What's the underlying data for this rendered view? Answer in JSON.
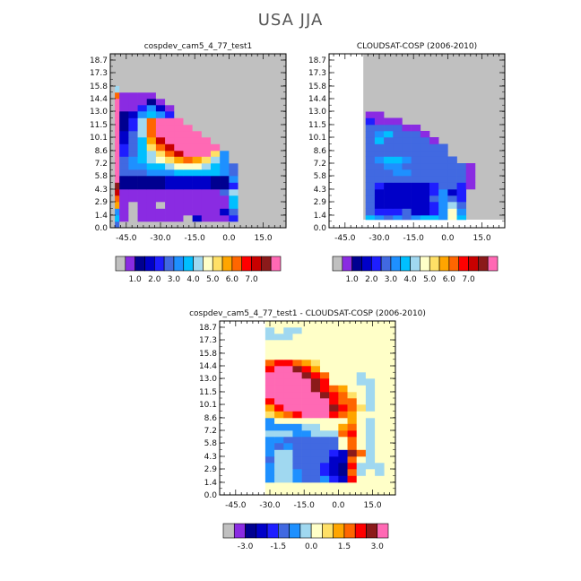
{
  "page_title": "USA JJA",
  "palettes": {
    "abs": [
      "#c0c0c0",
      "#8a2be2",
      "#000090",
      "#0000c8",
      "#1e1eff",
      "#4169e1",
      "#1e90ff",
      "#00bfff",
      "#a0d8f0",
      "#ffffc8",
      "#ffe066",
      "#ffa500",
      "#ff6600",
      "#ff0000",
      "#c80000",
      "#8b1a1a",
      "#ff69b4"
    ],
    "diff": [
      "#c0c0c0",
      "#8a2be2",
      "#000090",
      "#0000c8",
      "#1e1eff",
      "#4169e1",
      "#1e90ff",
      "#a0d8f0",
      "#ffffc8",
      "#ffe066",
      "#ffa500",
      "#ff6600",
      "#ff0000",
      "#8b1a1a",
      "#ff69b4"
    ]
  },
  "chart_data": [
    {
      "type": "heatmap",
      "title": "cospdev_cam5_4_77_test1",
      "palette": "abs",
      "background": "#c0c0c0",
      "x_ticks": [
        "-45.0",
        "-30.0",
        "-15.0",
        "0.0",
        "15.0"
      ],
      "x_tick_values": [
        -45,
        -30,
        -15,
        0,
        15
      ],
      "y_ticks": [
        "0.0",
        "1.4",
        "2.9",
        "4.3",
        "5.8",
        "7.2",
        "8.6",
        "10.1",
        "11.5",
        "13.0",
        "14.4",
        "15.8",
        "17.3",
        "18.7"
      ],
      "colorbar_labels": [
        "1.0",
        "2.0",
        "3.0",
        "4.0",
        "5.0",
        "6.0",
        "7.0"
      ],
      "x_range": [
        -52,
        25
      ],
      "y_range": [
        0,
        19.4
      ],
      "column_starts": [
        -50,
        -48,
        -44,
        -40,
        -36,
        -32,
        -28,
        -24,
        -20,
        -16,
        -12,
        -8,
        -4,
        0,
        4,
        8,
        12
      ],
      "row_starts": [
        0,
        0.7,
        1.4,
        2.15,
        2.9,
        3.6,
        4.3,
        5.05,
        5.8,
        6.5,
        7.2,
        7.95,
        8.6,
        9.35,
        10.1,
        10.8,
        11.5,
        12.25,
        13.0,
        13.7,
        14.4,
        15.1
      ],
      "cells": [
        [
          5,
          0,
          0,
          0,
          0,
          0,
          0,
          0,
          0,
          0,
          0,
          0,
          0,
          0,
          0,
          0,
          0
        ],
        [
          7,
          1,
          0,
          1,
          1,
          1,
          1,
          1,
          0,
          3,
          1,
          1,
          1,
          4,
          0,
          0,
          0
        ],
        [
          6,
          1,
          0,
          1,
          1,
          1,
          1,
          1,
          1,
          1,
          1,
          1,
          3,
          5,
          0,
          0,
          0
        ],
        [
          11,
          1,
          0,
          1,
          1,
          0,
          1,
          1,
          1,
          1,
          1,
          1,
          1,
          7,
          0,
          0,
          0
        ],
        [
          12,
          1,
          1,
          1,
          1,
          1,
          1,
          1,
          1,
          1,
          1,
          1,
          1,
          7,
          0,
          0,
          0
        ],
        [
          14,
          1,
          1,
          1,
          1,
          1,
          1,
          1,
          1,
          1,
          1,
          1,
          5,
          8,
          0,
          0,
          0
        ],
        [
          15,
          2,
          2,
          2,
          2,
          2,
          3,
          3,
          3,
          3,
          3,
          2,
          2,
          4,
          0,
          0,
          0
        ],
        [
          16,
          2,
          2,
          2,
          2,
          2,
          3,
          3,
          3,
          3,
          3,
          2,
          2,
          6,
          0,
          0,
          0
        ],
        [
          16,
          5,
          5,
          5,
          6,
          6,
          6,
          7,
          7,
          7,
          7,
          7,
          6,
          5,
          0,
          0,
          0
        ],
        [
          16,
          5,
          6,
          6,
          7,
          7,
          8,
          9,
          9,
          9,
          8,
          7,
          6,
          5,
          0,
          0,
          0
        ],
        [
          16,
          5,
          6,
          7,
          8,
          9,
          10,
          11,
          12,
          11,
          10,
          8,
          6,
          0,
          0,
          0,
          0
        ],
        [
          16,
          4,
          5,
          7,
          8,
          10,
          12,
          14,
          16,
          16,
          16,
          10,
          6,
          0,
          0,
          0,
          0
        ],
        [
          16,
          4,
          5,
          7,
          10,
          12,
          14,
          16,
          16,
          16,
          16,
          16,
          0,
          0,
          0,
          0,
          0
        ],
        [
          16,
          3,
          5,
          7,
          11,
          14,
          16,
          16,
          16,
          16,
          16,
          0,
          0,
          0,
          0,
          0,
          0
        ],
        [
          16,
          3,
          5,
          8,
          12,
          16,
          16,
          16,
          16,
          16,
          0,
          0,
          0,
          0,
          0,
          0,
          0
        ],
        [
          16,
          2,
          4,
          8,
          12,
          16,
          16,
          16,
          16,
          0,
          0,
          0,
          0,
          0,
          0,
          0,
          0
        ],
        [
          16,
          2,
          4,
          8,
          12,
          16,
          16,
          16,
          0,
          0,
          0,
          0,
          0,
          0,
          0,
          0,
          0
        ],
        [
          16,
          2,
          3,
          6,
          7,
          6,
          4,
          0,
          0,
          0,
          0,
          0,
          0,
          0,
          0,
          0,
          0
        ],
        [
          16,
          1,
          1,
          4,
          6,
          3,
          1,
          0,
          0,
          0,
          0,
          0,
          0,
          0,
          0,
          0,
          0
        ],
        [
          16,
          1,
          1,
          1,
          2,
          1,
          0,
          0,
          0,
          0,
          0,
          0,
          0,
          0,
          0,
          0,
          0
        ],
        [
          12,
          1,
          1,
          1,
          1,
          0,
          0,
          0,
          0,
          0,
          0,
          0,
          0,
          0,
          0,
          0,
          0
        ],
        [
          8,
          0,
          0,
          0,
          0,
          0,
          0,
          0,
          0,
          0,
          0,
          0,
          0,
          0,
          0,
          0,
          0
        ]
      ]
    },
    {
      "type": "heatmap",
      "title": "CLOUDSAT-COSP (2006-2010)",
      "palette": "abs",
      "background": "#c0c0c0",
      "blank_regions": [
        [
          -52,
          -37,
          0,
          19.4
        ],
        [
          -37,
          25,
          0,
          0.9
        ]
      ],
      "x_ticks": [
        "-45.0",
        "-30.0",
        "-15.0",
        "0.0",
        "15.0"
      ],
      "x_tick_values": [
        -45,
        -30,
        -15,
        0,
        15
      ],
      "y_ticks": [
        "0.0",
        "1.4",
        "2.9",
        "4.3",
        "5.8",
        "7.2",
        "8.6",
        "10.1",
        "11.5",
        "13.0",
        "14.4",
        "15.8",
        "17.3",
        "18.7"
      ],
      "colorbar_labels": [
        "1.0",
        "2.0",
        "3.0",
        "4.0",
        "5.0",
        "6.0",
        "7.0"
      ],
      "x_range": [
        -52,
        25
      ],
      "y_range": [
        0,
        19.4
      ],
      "column_starts": [
        -36,
        -32,
        -28,
        -24,
        -20,
        -16,
        -12,
        -8,
        -4,
        0,
        4,
        8
      ],
      "row_starts": [
        0.9,
        1.4,
        2.15,
        2.9,
        3.6,
        4.3,
        5.05,
        5.8,
        6.5,
        7.2,
        7.95,
        8.6,
        9.35,
        10.1,
        10.8,
        11.5,
        12.25
      ],
      "cells": [
        [
          7,
          6,
          5,
          6,
          5,
          6,
          7,
          7,
          6,
          9,
          7,
          -1
        ],
        [
          5,
          4,
          4,
          4,
          5,
          3,
          3,
          4,
          6,
          9,
          6,
          -1
        ],
        [
          5,
          3,
          3,
          3,
          3,
          3,
          3,
          4,
          6,
          8,
          5,
          -1
        ],
        [
          5,
          3,
          3,
          3,
          3,
          3,
          3,
          5,
          6,
          5,
          4,
          -1
        ],
        [
          5,
          3,
          3,
          3,
          3,
          3,
          3,
          4,
          6,
          3,
          4,
          -1
        ],
        [
          5,
          4,
          3,
          3,
          3,
          3,
          3,
          4,
          5,
          5,
          4,
          1
        ],
        [
          5,
          5,
          5,
          5,
          5,
          5,
          5,
          5,
          5,
          5,
          5,
          1
        ],
        [
          5,
          5,
          5,
          6,
          6,
          5,
          5,
          5,
          5,
          5,
          5,
          1
        ],
        [
          5,
          5,
          6,
          6,
          5,
          5,
          5,
          5,
          5,
          5,
          5,
          1
        ],
        [
          5,
          6,
          7,
          7,
          6,
          5,
          5,
          5,
          5,
          5,
          -1,
          -1
        ],
        [
          5,
          5,
          5,
          5,
          5,
          5,
          5,
          5,
          5,
          -1,
          -1,
          -1
        ],
        [
          5,
          5,
          5,
          5,
          5,
          5,
          5,
          5,
          5,
          -1,
          -1,
          -1
        ],
        [
          5,
          7,
          5,
          5,
          5,
          5,
          5,
          1,
          -1,
          -1,
          -1,
          -1
        ],
        [
          5,
          6,
          7,
          5,
          5,
          5,
          1,
          -1,
          -1,
          -1,
          -1,
          -1
        ],
        [
          5,
          5,
          5,
          5,
          1,
          1,
          -1,
          -1,
          -1,
          -1,
          -1,
          -1
        ],
        [
          4,
          1,
          1,
          1,
          -1,
          -1,
          -1,
          -1,
          -1,
          -1,
          -1,
          -1
        ],
        [
          1,
          1,
          -1,
          -1,
          -1,
          -1,
          -1,
          -1,
          -1,
          -1,
          -1,
          -1
        ]
      ]
    },
    {
      "type": "heatmap",
      "title": "cospdev_cam5_4_77_test1 - CLOUDSAT-COSP (2006-2010)",
      "palette": "diff",
      "background": "#ffffc8",
      "blank_regions": [
        [
          -52,
          -32,
          0,
          19.4
        ]
      ],
      "x_ticks": [
        "-45.0",
        "-30.0",
        "-15.0",
        "0.0",
        "15.0"
      ],
      "x_tick_values": [
        -45,
        -30,
        -15,
        0,
        15
      ],
      "y_ticks": [
        "0.0",
        "1.4",
        "2.9",
        "4.3",
        "5.8",
        "7.2",
        "8.6",
        "10.1",
        "11.5",
        "13.0",
        "14.4",
        "15.8",
        "17.3",
        "18.7"
      ],
      "colorbar_labels": [
        "-3.0",
        "-1.5",
        "0.0",
        "1.5",
        "3.0"
      ],
      "x_range": [
        -52,
        25
      ],
      "y_range": [
        0,
        19.4
      ],
      "column_starts": [
        -32,
        -28,
        -24,
        -20,
        -16,
        -12,
        -8,
        -4,
        0,
        4,
        8,
        12,
        16
      ],
      "row_starts": [
        0,
        0.7,
        1.4,
        2.15,
        2.9,
        3.6,
        4.3,
        5.05,
        5.8,
        6.5,
        7.2,
        7.95,
        8.6,
        9.35,
        10.1,
        10.8,
        11.5,
        12.25,
        13.0,
        13.7,
        14.4,
        15.1,
        15.8,
        16.5,
        17.3,
        18.0,
        18.7
      ],
      "cells": [
        [
          8,
          8,
          8,
          8,
          8,
          8,
          8,
          8,
          8,
          8,
          8,
          8,
          8
        ],
        [
          8,
          8,
          8,
          8,
          8,
          8,
          8,
          8,
          8,
          8,
          8,
          8,
          8
        ],
        [
          6,
          7,
          7,
          6,
          5,
          5,
          6,
          4,
          3,
          12,
          8,
          8,
          8
        ],
        [
          6,
          7,
          7,
          6,
          5,
          5,
          4,
          3,
          2,
          11,
          7,
          8,
          7
        ],
        [
          6,
          7,
          7,
          5,
          5,
          5,
          4,
          3,
          2,
          12,
          7,
          7,
          7
        ],
        [
          5,
          7,
          7,
          5,
          5,
          5,
          5,
          3,
          3,
          11,
          8,
          7,
          8
        ],
        [
          6,
          7,
          7,
          5,
          5,
          5,
          5,
          4,
          3,
          13,
          11,
          7,
          8
        ],
        [
          6,
          5,
          6,
          5,
          5,
          5,
          5,
          5,
          8,
          11,
          8,
          7,
          8
        ],
        [
          6,
          6,
          5,
          5,
          5,
          5,
          5,
          5,
          8,
          11,
          8,
          7,
          8
        ],
        [
          7,
          7,
          7,
          6,
          6,
          7,
          7,
          7,
          11,
          12,
          8,
          7,
          8
        ],
        [
          6,
          6,
          6,
          6,
          7,
          7,
          8,
          8,
          10,
          11,
          8,
          7,
          8
        ],
        [
          6,
          8,
          8,
          8,
          8,
          8,
          8,
          8,
          8,
          10,
          8,
          7,
          8
        ],
        [
          9,
          10,
          11,
          12,
          14,
          14,
          14,
          12,
          11,
          10,
          8,
          8,
          8
        ],
        [
          10,
          12,
          14,
          14,
          14,
          14,
          14,
          13,
          12,
          11,
          9,
          7,
          8
        ],
        [
          12,
          14,
          14,
          14,
          14,
          14,
          14,
          12,
          11,
          11,
          8,
          7,
          8
        ],
        [
          14,
          14,
          14,
          14,
          14,
          14,
          13,
          12,
          11,
          9,
          8,
          7,
          8
        ],
        [
          14,
          14,
          14,
          14,
          14,
          13,
          12,
          11,
          10,
          8,
          8,
          7,
          8
        ],
        [
          14,
          14,
          14,
          14,
          14,
          13,
          12,
          8,
          8,
          8,
          7,
          7,
          8
        ],
        [
          14,
          14,
          14,
          14,
          13,
          12,
          11,
          8,
          8,
          8,
          7,
          8,
          8
        ],
        [
          12,
          14,
          14,
          13,
          12,
          10,
          8,
          8,
          8,
          8,
          8,
          8,
          8
        ],
        [
          11,
          12,
          12,
          11,
          10,
          9,
          8,
          8,
          8,
          8,
          8,
          8,
          8
        ],
        [
          8,
          8,
          8,
          8,
          8,
          8,
          8,
          8,
          8,
          8,
          8,
          8,
          8
        ],
        [
          8,
          8,
          8,
          8,
          8,
          8,
          8,
          8,
          8,
          8,
          8,
          8,
          8
        ],
        [
          8,
          8,
          8,
          8,
          8,
          8,
          8,
          8,
          8,
          8,
          8,
          8,
          8
        ],
        [
          7,
          7,
          7,
          8,
          8,
          8,
          8,
          8,
          8,
          8,
          8,
          8,
          8
        ],
        [
          7,
          8,
          7,
          7,
          8,
          8,
          8,
          8,
          8,
          8,
          8,
          8,
          8
        ],
        [
          8,
          8,
          8,
          8,
          8,
          8,
          8,
          8,
          8,
          8,
          8,
          8,
          8
        ]
      ]
    }
  ]
}
